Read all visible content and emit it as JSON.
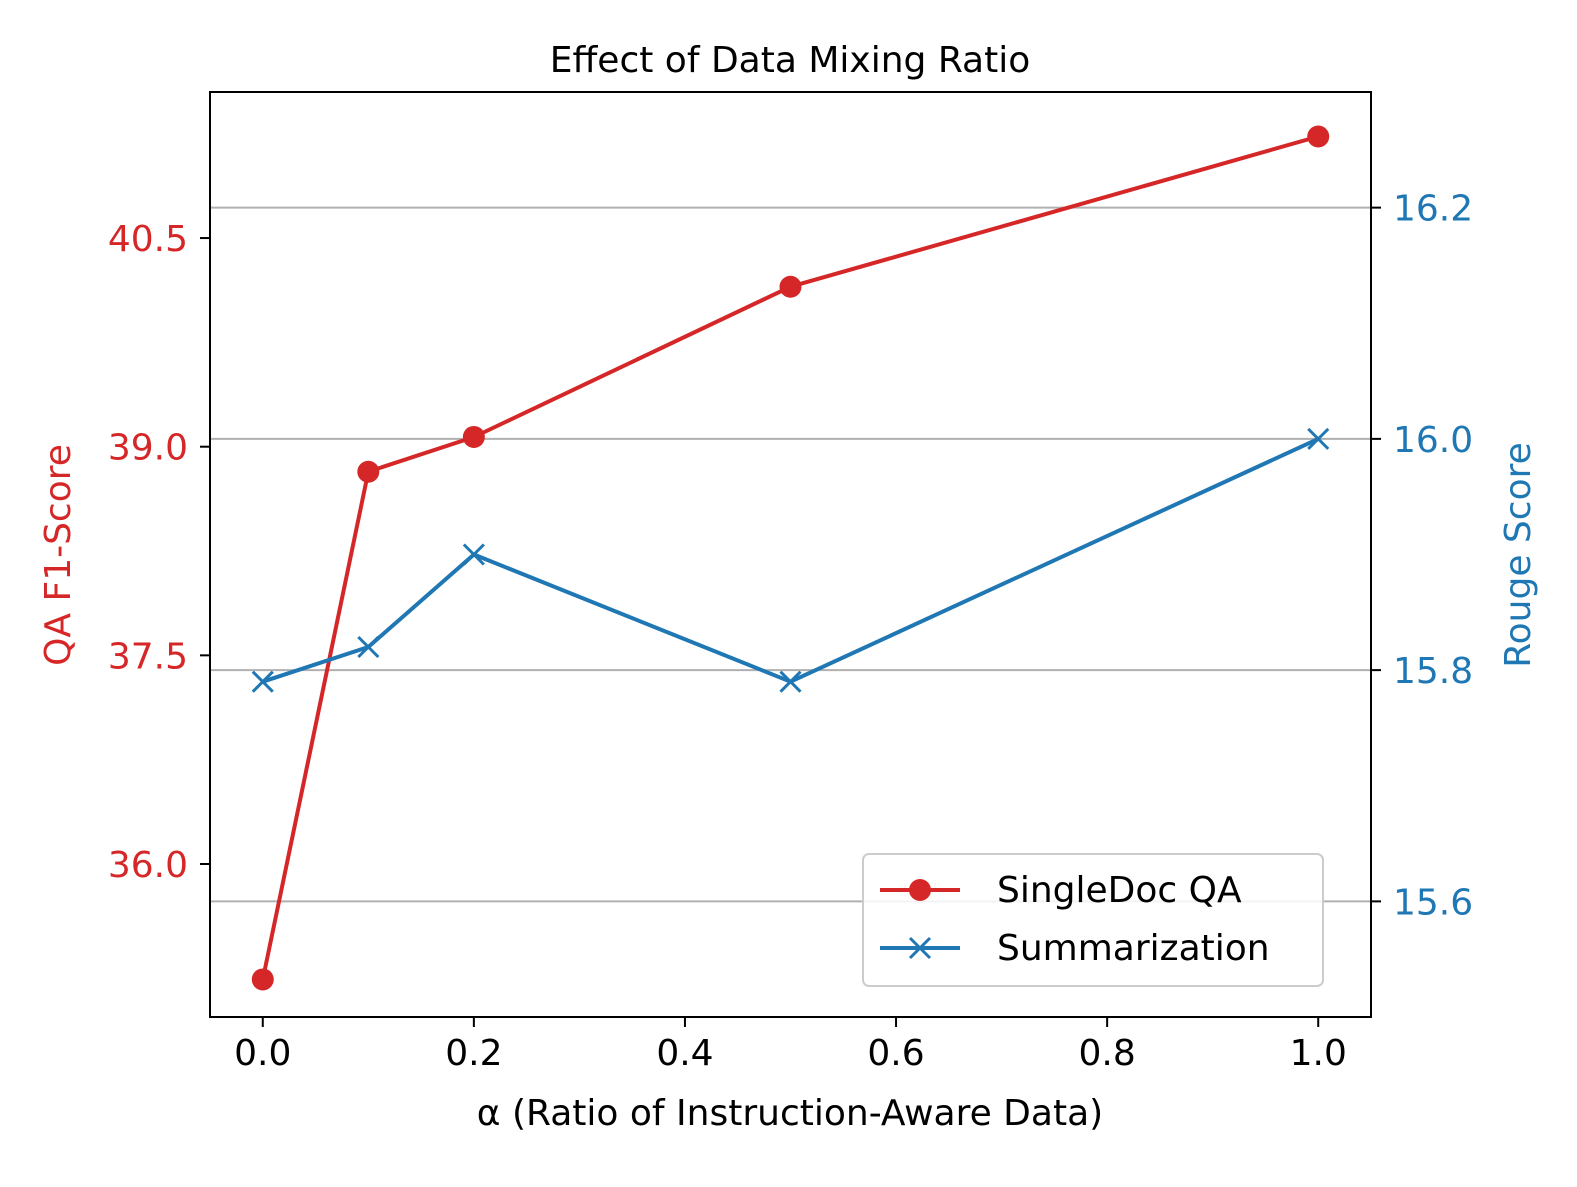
{
  "chart_data": {
    "type": "line",
    "title": "Effect of Data Mixing Ratio",
    "xlabel": "α (Ratio of Instruction-Aware Data)",
    "ylabel_left": "QA F1-Score",
    "ylabel_right": "Rouge Score",
    "xlim": [
      -0.05,
      1.05
    ],
    "x_ticks": [
      0.0,
      0.2,
      0.4,
      0.6,
      0.8,
      1.0
    ],
    "x_tick_labels": [
      "0.0",
      "0.2",
      "0.4",
      "0.6",
      "0.8",
      "1.0"
    ],
    "ylim_left": [
      34.9,
      41.55
    ],
    "y_ticks_left": [
      36.0,
      37.5,
      39.0,
      40.5
    ],
    "y_tick_labels_left": [
      "36.0",
      "37.5",
      "39.0",
      "40.5"
    ],
    "ylim_right": [
      15.5,
      16.3
    ],
    "y_ticks_right": [
      15.6,
      15.8,
      16.0,
      16.2
    ],
    "y_tick_labels_right": [
      "15.6",
      "15.8",
      "16.0",
      "16.2"
    ],
    "grid": "right-axis horizontal",
    "legend_position": "lower-right",
    "series": [
      {
        "name": "SingleDoc QA",
        "axis": "left",
        "color": "#d62728",
        "marker": "circle",
        "x": [
          0.0,
          0.1,
          0.2,
          0.5,
          1.0
        ],
        "values": [
          35.17,
          38.82,
          39.07,
          40.15,
          41.23
        ]
      },
      {
        "name": "Summarization",
        "axis": "right",
        "color": "#1f77b4",
        "marker": "x",
        "x": [
          0.0,
          0.1,
          0.2,
          0.5,
          1.0
        ],
        "values": [
          15.79,
          15.82,
          15.9,
          15.79,
          16.0
        ]
      }
    ]
  }
}
